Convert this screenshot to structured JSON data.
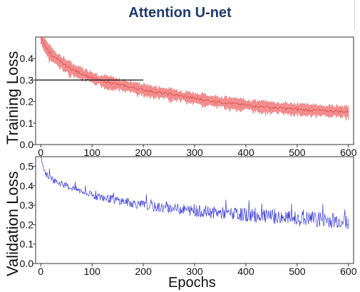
{
  "title": "Attention U-net",
  "chart_data": [
    {
      "type": "area",
      "name": "training-loss",
      "ylabel": "Training Loss",
      "xlabel": "",
      "xlim": [
        -10,
        610
      ],
      "ylim": [
        0.0,
        0.5
      ],
      "xticks": [
        "0",
        "100",
        "200",
        "300",
        "400",
        "500",
        "600"
      ],
      "yticks": [
        "0.0",
        "0.1",
        "0.2",
        "0.3",
        "0.4"
      ],
      "band_color": "#f07a7a",
      "center_color": "#e04848",
      "x": [
        0,
        10,
        20,
        30,
        40,
        50,
        60,
        80,
        100,
        120,
        140,
        160,
        180,
        200,
        220,
        250,
        275,
        300,
        325,
        350,
        375,
        400,
        425,
        450,
        475,
        500,
        525,
        550,
        575,
        600
      ],
      "y": [
        0.5,
        0.45,
        0.42,
        0.4,
        0.38,
        0.365,
        0.35,
        0.33,
        0.31,
        0.295,
        0.285,
        0.275,
        0.265,
        0.255,
        0.245,
        0.235,
        0.225,
        0.215,
        0.205,
        0.198,
        0.19,
        0.184,
        0.178,
        0.172,
        0.168,
        0.164,
        0.16,
        0.157,
        0.155,
        0.152
      ],
      "band_halfwidth": 0.022,
      "reference_line": {
        "y": 0.3,
        "x_from": -10,
        "x_to": 200,
        "color": "#111111"
      }
    },
    {
      "type": "line",
      "name": "validation-loss",
      "ylabel": "Validation Loss",
      "xlabel": "Epochs",
      "xlim": [
        -10,
        610
      ],
      "ylim": [
        0.0,
        0.55
      ],
      "xticks": [
        "0",
        "100",
        "200",
        "300",
        "400",
        "500",
        "600"
      ],
      "yticks": [
        "0.0",
        "0.1",
        "0.2",
        "0.3",
        "0.4",
        "0.5"
      ],
      "line_color": "#3b3bdc",
      "x": [
        0,
        5,
        10,
        20,
        30,
        40,
        50,
        60,
        80,
        100,
        120,
        140,
        160,
        180,
        200,
        225,
        250,
        275,
        300,
        325,
        350,
        375,
        400,
        425,
        450,
        475,
        500,
        525,
        550,
        575,
        600
      ],
      "y": [
        0.55,
        0.5,
        0.46,
        0.44,
        0.42,
        0.41,
        0.4,
        0.39,
        0.37,
        0.35,
        0.34,
        0.33,
        0.32,
        0.31,
        0.3,
        0.29,
        0.285,
        0.28,
        0.27,
        0.265,
        0.26,
        0.255,
        0.25,
        0.245,
        0.24,
        0.235,
        0.232,
        0.228,
        0.225,
        0.222,
        0.22
      ],
      "noise_amplitude": 0.03
    }
  ]
}
